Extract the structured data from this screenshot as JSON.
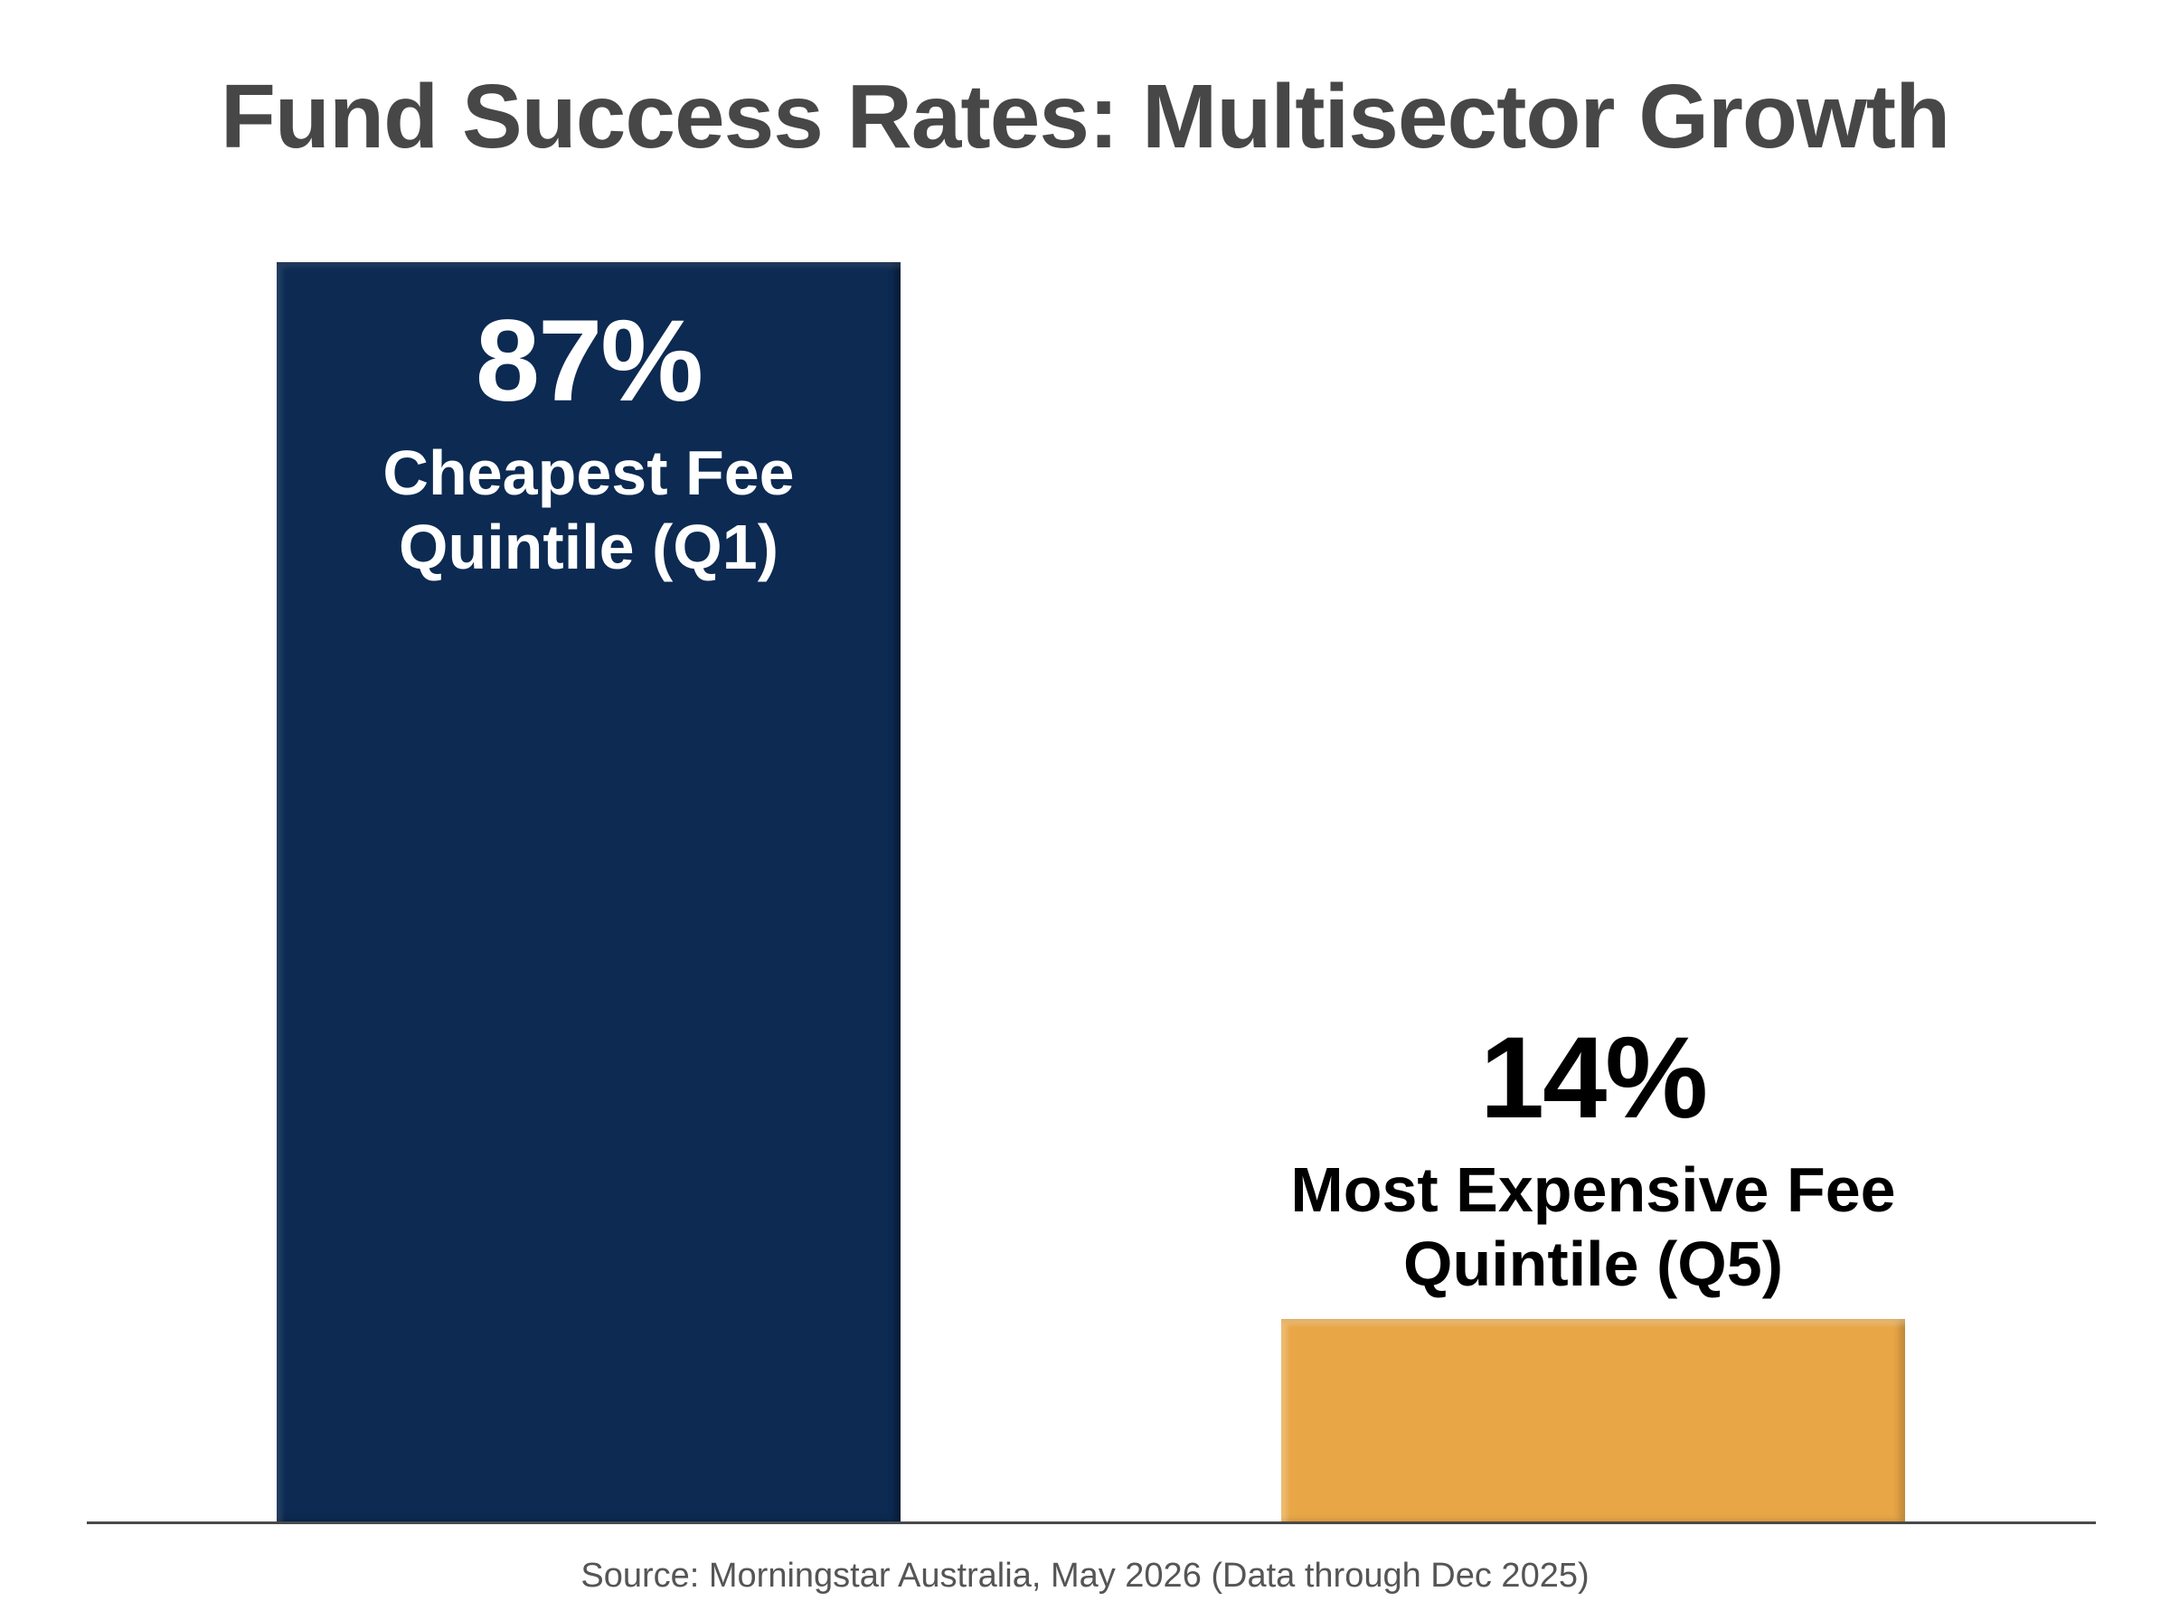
{
  "chart_data": {
    "type": "bar",
    "title": "Fund Success Rates: Multisector Growth",
    "xlabel": "",
    "ylabel": "",
    "ylim": [
      0,
      100
    ],
    "unit": "%",
    "grid": false,
    "legend": "none",
    "categories": [
      "Cheapest Fee Quintile (Q1)",
      "Most Expensive Fee Quintile (Q5)"
    ],
    "values": [
      87,
      14
    ],
    "value_labels": [
      "87%",
      "14%"
    ],
    "colors": [
      "#0c2a52",
      "#e8a646"
    ],
    "label_colors": [
      "#ffffff",
      "#000000"
    ],
    "label_position": [
      "inside",
      "above"
    ],
    "source": "Source: Morningstar Australia, May 2026 (Data through Dec 2025)"
  }
}
